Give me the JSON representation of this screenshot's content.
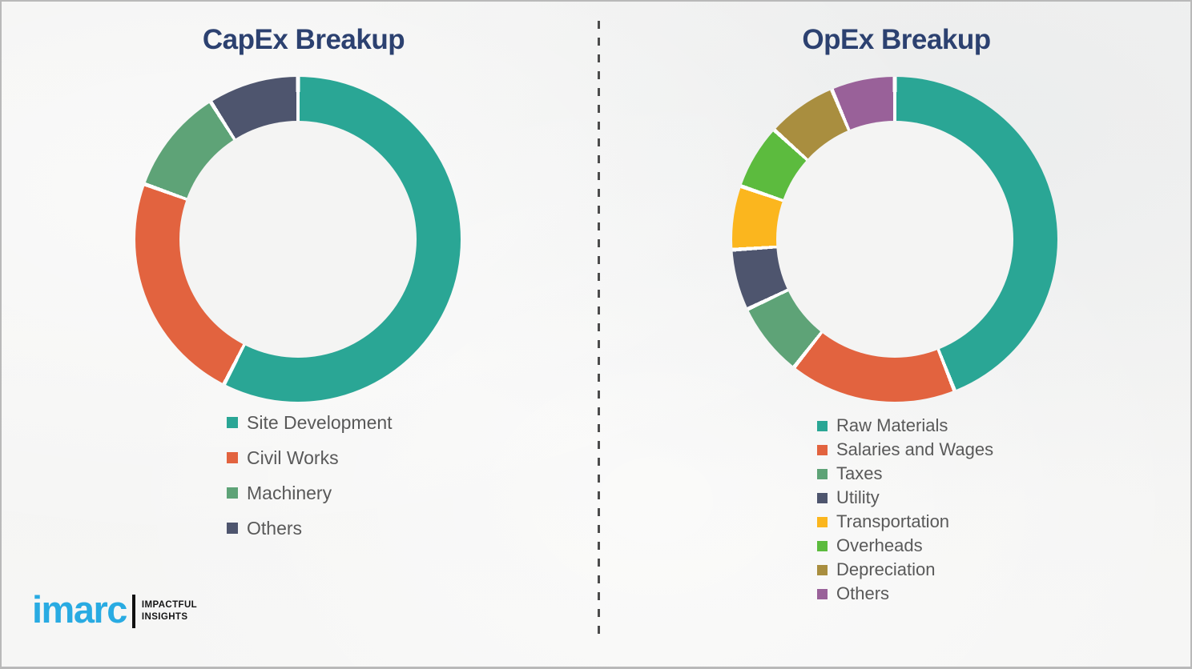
{
  "theme": {
    "title_color": "#2c4170",
    "legend_text_color": "#595959",
    "divider_color": "#4c4c4c",
    "background_color": "#f4f4f3",
    "segment_gap_color": "#ffffff"
  },
  "chart_data": [
    {
      "type": "pie",
      "donut": true,
      "title": "CapEx Breakup",
      "legend_position": "bottom",
      "labels": [
        "Site Development",
        "Civil Works",
        "Machinery",
        "Others"
      ],
      "values": [
        57.5,
        23,
        10.5,
        9
      ],
      "colors": [
        "#2AA695",
        "#E2633F",
        "#5EA377",
        "#4E556E"
      ],
      "start_angle_deg": 0,
      "direction": "clockwise"
    },
    {
      "type": "pie",
      "donut": true,
      "title": "OpEx Breakup",
      "legend_position": "bottom",
      "labels": [
        "Raw Materials",
        "Salaries and Wages",
        "Taxes",
        "Utility",
        "Transportation",
        "Overheads",
        "Depreciation",
        "Others"
      ],
      "values": [
        43.8,
        16.5,
        7.3,
        6.0,
        6.3,
        6.4,
        6.9,
        6.3
      ],
      "colors": [
        "#2AA695",
        "#E2633F",
        "#5EA377",
        "#4E556E",
        "#FBB61E",
        "#5CBB3E",
        "#A98E3F",
        "#996199"
      ],
      "start_angle_deg": 0,
      "direction": "clockwise"
    }
  ],
  "logo": {
    "brand": "imarc",
    "brand_color": "#29ABE2",
    "tagline_line1": "IMPACTFUL",
    "tagline_line2": "INSIGHTS"
  }
}
